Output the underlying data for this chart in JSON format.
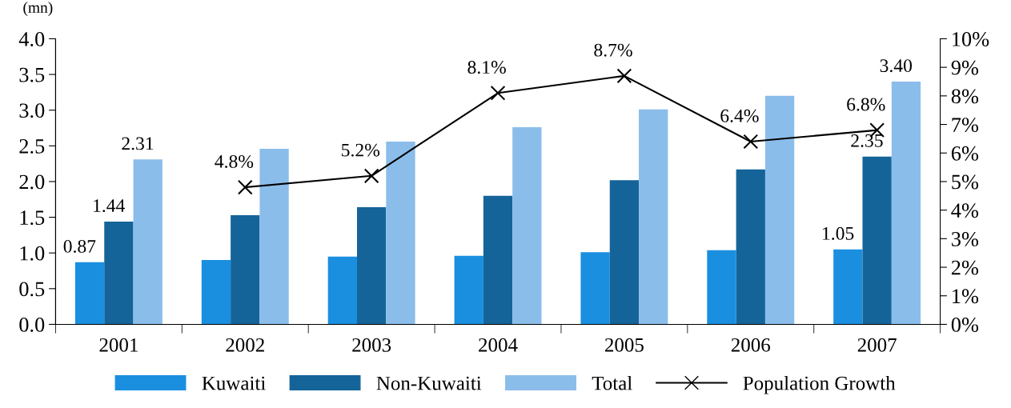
{
  "chart_data": {
    "type": "bar",
    "ylabel": "(mn)",
    "categories": [
      "2001",
      "2002",
      "2003",
      "2004",
      "2005",
      "2006",
      "2007"
    ],
    "series": [
      {
        "name": "Kuwaiti",
        "color": "#1a8fe0",
        "values": [
          0.87,
          0.9,
          0.95,
          0.96,
          1.01,
          1.04,
          1.05
        ],
        "value_labels": [
          "0.87",
          null,
          null,
          null,
          null,
          null,
          "1.05"
        ]
      },
      {
        "name": "Non-Kuwaiti",
        "color": "#156499",
        "values": [
          1.44,
          1.53,
          1.64,
          1.8,
          2.02,
          2.17,
          2.35
        ],
        "value_labels": [
          "1.44",
          null,
          null,
          null,
          null,
          null,
          "2.35"
        ]
      },
      {
        "name": "Total",
        "color": "#8bbdea",
        "values": [
          2.31,
          2.46,
          2.56,
          2.76,
          3.01,
          3.2,
          3.4
        ],
        "value_labels": [
          "2.31",
          null,
          null,
          null,
          null,
          null,
          "3.40"
        ]
      },
      {
        "name": "Population Growth",
        "type": "line",
        "axis": "y2",
        "color": "#000000",
        "marker": "cross",
        "values": [
          null,
          4.8,
          5.2,
          8.1,
          8.7,
          6.4,
          6.8
        ],
        "value_labels": [
          null,
          "4.8%",
          "5.2%",
          "8.1%",
          "8.7%",
          "6.4%",
          "6.8%"
        ]
      }
    ],
    "ylim": [
      0,
      4
    ],
    "yticks": [
      {
        "value": 0,
        "label": "0.0"
      },
      {
        "value": 0.5,
        "label": "0.5"
      },
      {
        "value": 1,
        "label": "1.0"
      },
      {
        "value": 1.5,
        "label": "1.5"
      },
      {
        "value": 2,
        "label": "2.0"
      },
      {
        "value": 2.5,
        "label": "2.5"
      },
      {
        "value": 3,
        "label": "3.0"
      },
      {
        "value": 3.5,
        "label": "3.5"
      },
      {
        "value": 4,
        "label": "4.0"
      }
    ],
    "y2lim": [
      0,
      10
    ],
    "y2ticks": [
      {
        "value": 0,
        "label": "0%"
      },
      {
        "value": 1,
        "label": "1%"
      },
      {
        "value": 2,
        "label": "2%"
      },
      {
        "value": 3,
        "label": "3%"
      },
      {
        "value": 4,
        "label": "4%"
      },
      {
        "value": 5,
        "label": "5%"
      },
      {
        "value": 6,
        "label": "6%"
      },
      {
        "value": 7,
        "label": "7%"
      },
      {
        "value": 8,
        "label": "8%"
      },
      {
        "value": 9,
        "label": "9%"
      },
      {
        "value": 10,
        "label": "10%"
      }
    ],
    "grid": false,
    "legend": "bottom"
  }
}
